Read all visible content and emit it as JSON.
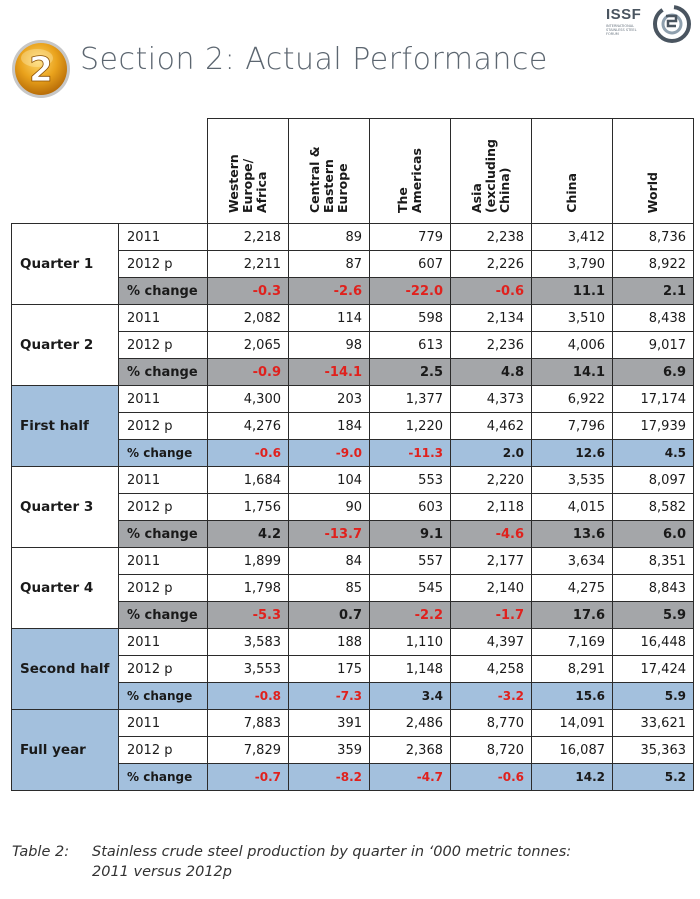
{
  "header": {
    "logo_text": "ISSF",
    "logo_sub": "INTERNATIONAL STAINLESS STEEL FORUM",
    "section_number": "2",
    "section_title": "Section 2: Actual Performance"
  },
  "colors": {
    "blue_band": "#a3c0dd",
    "grey_band": "#a4a6a9",
    "negative": "#e0211d",
    "badge_gold": "#d98b14"
  },
  "table": {
    "columns": [
      "Western Europe/ Africa",
      "Central & Eastern Europe",
      "The Americas",
      "Asia (excluding China)",
      "China",
      "World"
    ],
    "groups": [
      {
        "name": "Quarter 1",
        "style": "white",
        "pct_style": "grey",
        "rows": [
          {
            "label": "2011",
            "values": [
              "2,218",
              "89",
              "779",
              "2,238",
              "3,412",
              "8,736"
            ]
          },
          {
            "label": "2012 p",
            "values": [
              "2,211",
              "87",
              "607",
              "2,226",
              "3,790",
              "8,922"
            ]
          },
          {
            "label": "% change",
            "values": [
              "-0.3",
              "-2.6",
              "-22.0",
              "-0.6",
              "11.1",
              "2.1"
            ]
          }
        ]
      },
      {
        "name": "Quarter 2",
        "style": "white",
        "pct_style": "grey",
        "rows": [
          {
            "label": "2011",
            "values": [
              "2,082",
              "114",
              "598",
              "2,134",
              "3,510",
              "8,438"
            ]
          },
          {
            "label": "2012 p",
            "values": [
              "2,065",
              "98",
              "613",
              "2,236",
              "4,006",
              "9,017"
            ]
          },
          {
            "label": "% change",
            "values": [
              "-0.9",
              "-14.1",
              "2.5",
              "4.8",
              "14.1",
              "6.9"
            ]
          }
        ]
      },
      {
        "name": "First half",
        "style": "blue",
        "pct_style": "blue",
        "rows": [
          {
            "label": "2011",
            "values": [
              "4,300",
              "203",
              "1,377",
              "4,373",
              "6,922",
              "17,174"
            ]
          },
          {
            "label": "2012 p",
            "values": [
              "4,276",
              "184",
              "1,220",
              "4,462",
              "7,796",
              "17,939"
            ]
          },
          {
            "label": "% change",
            "values": [
              "-0.6",
              "-9.0",
              "-11.3",
              "2.0",
              "12.6",
              "4.5"
            ]
          }
        ]
      },
      {
        "name": "Quarter 3",
        "style": "white",
        "pct_style": "grey",
        "rows": [
          {
            "label": "2011",
            "values": [
              "1,684",
              "104",
              "553",
              "2,220",
              "3,535",
              "8,097"
            ]
          },
          {
            "label": "2012 p",
            "values": [
              "1,756",
              "90",
              "603",
              "2,118",
              "4,015",
              "8,582"
            ]
          },
          {
            "label": "% change",
            "values": [
              "4.2",
              "-13.7",
              "9.1",
              "-4.6",
              "13.6",
              "6.0"
            ]
          }
        ]
      },
      {
        "name": "Quarter 4",
        "style": "white",
        "pct_style": "grey",
        "rows": [
          {
            "label": "2011",
            "values": [
              "1,899",
              "84",
              "557",
              "2,177",
              "3,634",
              "8,351"
            ]
          },
          {
            "label": "2012 p",
            "values": [
              "1,798",
              "85",
              "545",
              "2,140",
              "4,275",
              "8,843"
            ]
          },
          {
            "label": "% change",
            "values": [
              "-5.3",
              "0.7",
              "-2.2",
              "-1.7",
              "17.6",
              "5.9"
            ]
          }
        ]
      },
      {
        "name": "Second half",
        "style": "blue",
        "pct_style": "blue",
        "rows": [
          {
            "label": "2011",
            "values": [
              "3,583",
              "188",
              "1,110",
              "4,397",
              "7,169",
              "16,448"
            ]
          },
          {
            "label": "2012 p",
            "values": [
              "3,553",
              "175",
              "1,148",
              "4,258",
              "8,291",
              "17,424"
            ]
          },
          {
            "label": "% change",
            "values": [
              "-0.8",
              "-7.3",
              "3.4",
              "-3.2",
              "15.6",
              "5.9"
            ]
          }
        ]
      },
      {
        "name": "Full year",
        "style": "blue",
        "pct_style": "blue",
        "rows": [
          {
            "label": "2011",
            "values": [
              "7,883",
              "391",
              "2,486",
              "8,770",
              "14,091",
              "33,621"
            ]
          },
          {
            "label": "2012 p",
            "values": [
              "7,829",
              "359",
              "2,368",
              "8,720",
              "16,087",
              "35,363"
            ]
          },
          {
            "label": "% change",
            "values": [
              "-0.7",
              "-8.2",
              "-4.7",
              "-0.6",
              "14.2",
              "5.2"
            ]
          }
        ]
      }
    ]
  },
  "caption": {
    "number": "Table 2:",
    "line1": "Stainless crude steel production by quarter in ‘000 metric tonnes:",
    "line2": "2011 versus 2012p"
  }
}
